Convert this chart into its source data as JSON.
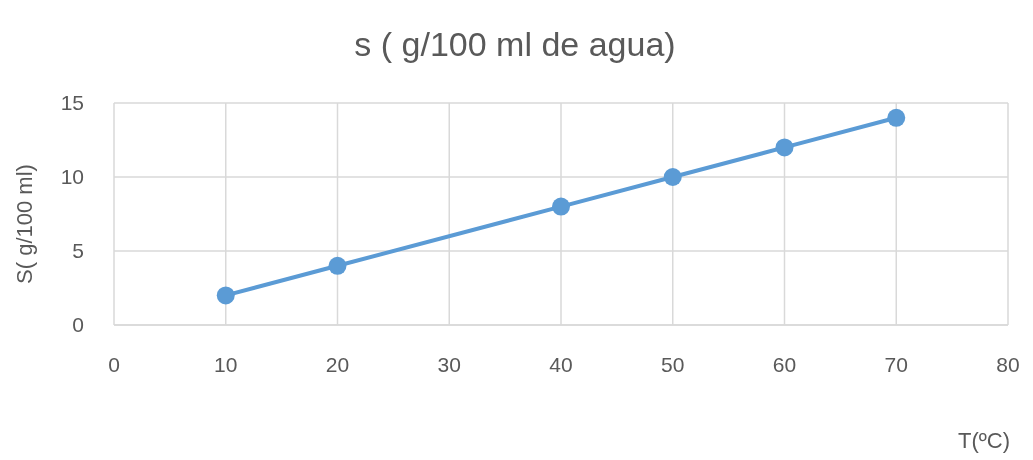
{
  "chart_data": {
    "type": "line",
    "title": "s ( g/100 ml de agua)",
    "xlabel": "T(ºC)",
    "ylabel": "S( g/100 ml)",
    "x": [
      10,
      20,
      40,
      50,
      60,
      70
    ],
    "series": [
      {
        "color": "#5b9bd5",
        "values": [
          2,
          4,
          8,
          10,
          12,
          14
        ]
      }
    ],
    "xlim": [
      0,
      80
    ],
    "xticks": [
      0,
      10,
      20,
      30,
      40,
      50,
      60,
      70,
      80
    ],
    "ylim": [
      0,
      15
    ],
    "yticks": [
      0,
      5,
      10,
      15
    ],
    "grid": true,
    "marker": "circle",
    "line_style": "solid"
  }
}
